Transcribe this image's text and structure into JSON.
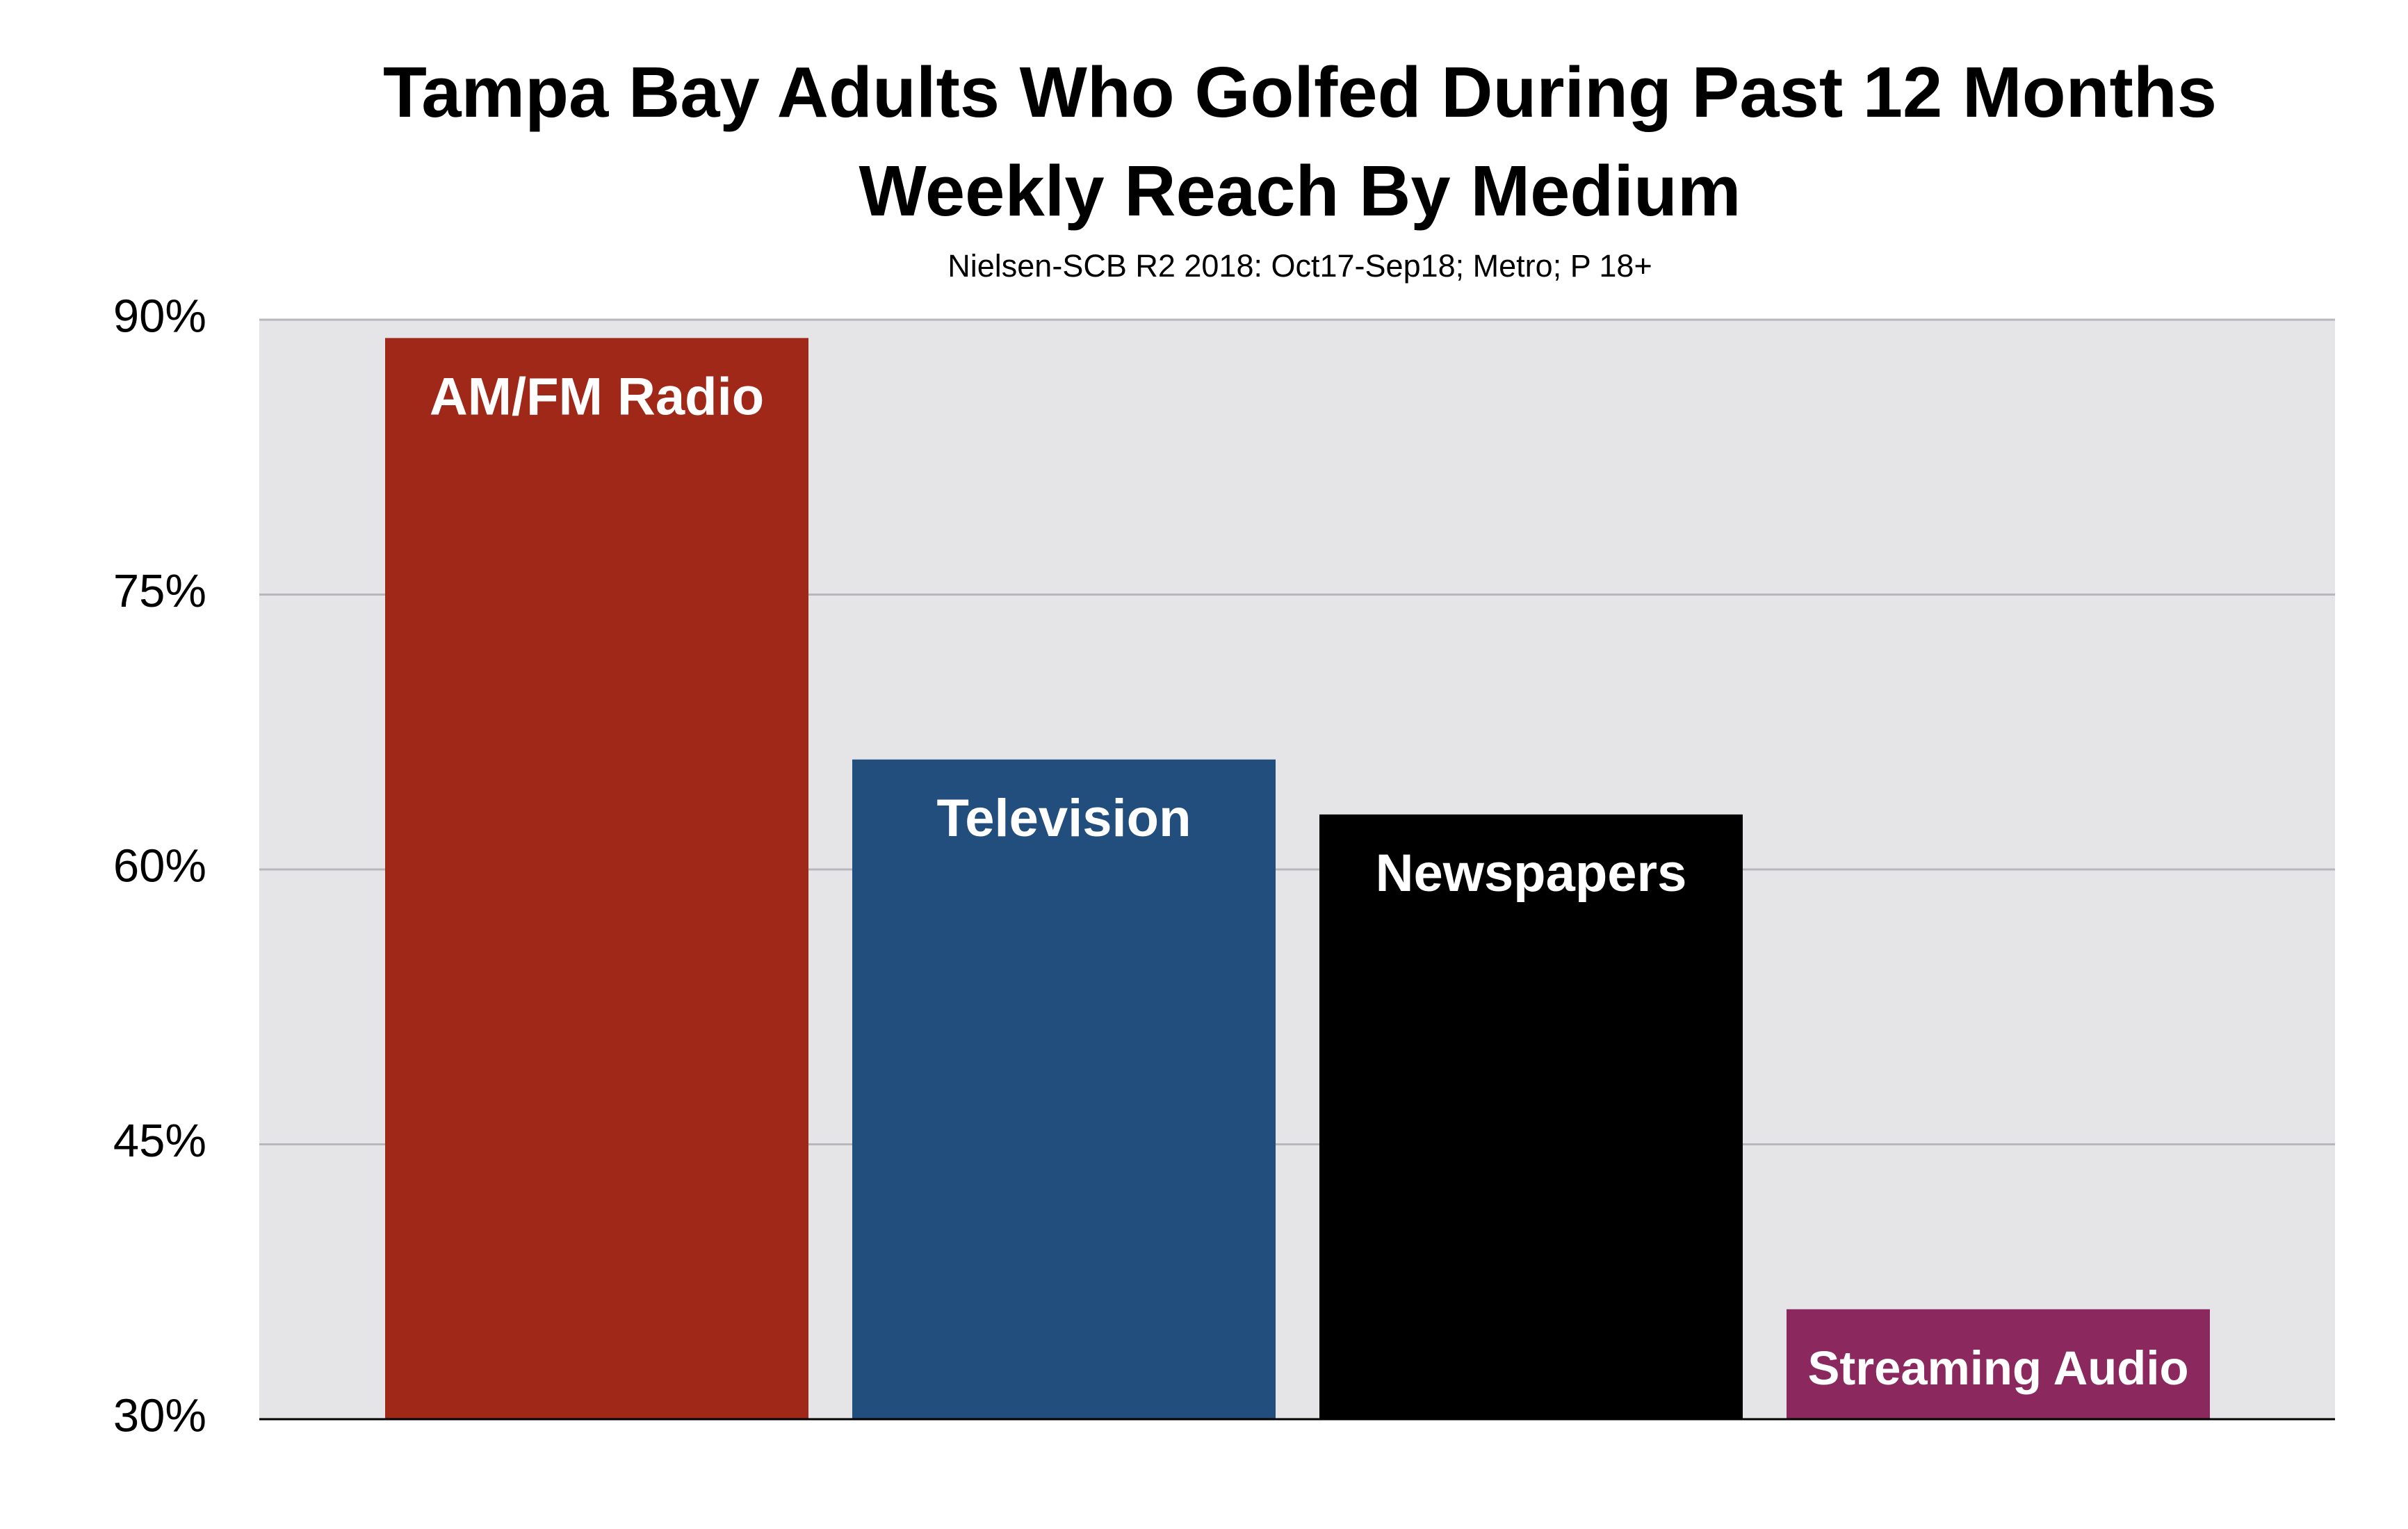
{
  "chart_data": {
    "type": "bar",
    "title": "Tampa Bay Adults Who Golfed During Past 12 Months",
    "subtitle": "Weekly Reach By Medium",
    "source": "Nielsen-SCB R2 2018: Oct17-Sep18; Metro; P 18+",
    "categories": [
      "AM/FM Radio",
      "Television",
      "Newspapers",
      "Streaming Audio"
    ],
    "values": [
      89,
      66,
      63,
      36
    ],
    "colors": [
      "#a02819",
      "#214e7c",
      "#000000",
      "#8b285e"
    ],
    "ylim": [
      30,
      90
    ],
    "yticks": [
      {
        "value": 30,
        "label": "30%"
      },
      {
        "value": 45,
        "label": "45%"
      },
      {
        "value": 60,
        "label": "60%"
      },
      {
        "value": 75,
        "label": "75%"
      },
      {
        "value": 90,
        "label": "90%"
      }
    ],
    "grid": true
  }
}
